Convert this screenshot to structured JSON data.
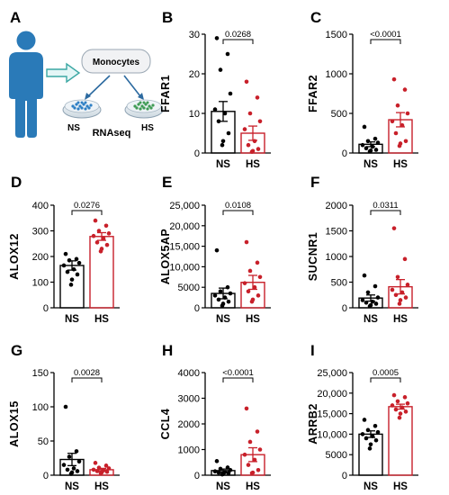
{
  "colors": {
    "ns": "#000000",
    "hs": "#c8202a",
    "person": "#2a7ab8",
    "arrow_fill": "#e4f6f6",
    "arrow_stroke": "#3aa7a3",
    "dish_ns": "#2e7fc4",
    "dish_hs": "#3f9b55"
  },
  "diagram": {
    "panel_label": "A",
    "monocytes": "Monocytes",
    "ns": "NS",
    "rnaseq": "RNAseq",
    "hs": "HS",
    "icons": [
      "person-icon",
      "block-arrow-icon",
      "petri-dish-icon"
    ]
  },
  "chart_data": [
    {
      "panel": "B",
      "type": "bar",
      "ylabel": "FFAR1",
      "categories": [
        "NS",
        "HS"
      ],
      "ylim": [
        0,
        30
      ],
      "yticks": [
        0,
        10,
        20,
        30
      ],
      "tick_labels": [
        "0",
        "10",
        "20",
        "30"
      ],
      "means": [
        10.5,
        5.0
      ],
      "sem": [
        2.5,
        1.8
      ],
      "pvalue": "0.0268",
      "points": [
        [
          29,
          25,
          21,
          15,
          11,
          10,
          8,
          5,
          3,
          2
        ],
        [
          18,
          14,
          10,
          8,
          6,
          3,
          2,
          1,
          0.5,
          0.3
        ]
      ]
    },
    {
      "panel": "C",
      "type": "bar",
      "ylabel": "FFAR2",
      "categories": [
        "NS",
        "HS"
      ],
      "ylim": [
        0,
        1500
      ],
      "yticks": [
        0,
        500,
        1000,
        1500
      ],
      "tick_labels": [
        "0",
        "500",
        "1000",
        "1500"
      ],
      "means": [
        110,
        420
      ],
      "sem": [
        30,
        90
      ],
      "pvalue": "<0.0001",
      "points": [
        [
          330,
          180,
          150,
          130,
          100,
          80,
          60,
          40,
          30,
          20
        ],
        [
          930,
          800,
          600,
          500,
          400,
          350,
          250,
          150,
          120,
          90
        ]
      ]
    },
    {
      "panel": "D",
      "type": "bar",
      "ylabel": "ALOX12",
      "categories": [
        "NS",
        "HS"
      ],
      "ylim": [
        0,
        400
      ],
      "yticks": [
        0,
        100,
        200,
        300,
        400
      ],
      "tick_labels": [
        "0",
        "100",
        "200",
        "300",
        "400"
      ],
      "means": [
        165,
        278
      ],
      "sem": [
        18,
        15
      ],
      "pvalue": "0.0276",
      "points": [
        [
          210,
          190,
          185,
          175,
          165,
          150,
          140,
          130,
          110,
          90
        ],
        [
          340,
          320,
          300,
          290,
          280,
          270,
          255,
          245,
          230,
          220
        ]
      ]
    },
    {
      "panel": "E",
      "type": "bar",
      "ylabel": "ALOX5AP",
      "categories": [
        "NS",
        "HS"
      ],
      "ylim": [
        0,
        25000
      ],
      "yticks": [
        0,
        5000,
        10000,
        15000,
        20000,
        25000
      ],
      "tick_labels": [
        "0",
        "5000",
        "10,000",
        "15,000",
        "20,000",
        "25,000"
      ],
      "means": [
        3500,
        6200
      ],
      "sem": [
        1300,
        1700
      ],
      "pvalue": "0.0108",
      "points": [
        [
          14000,
          5000,
          4000,
          3500,
          3000,
          2500,
          2000,
          1500,
          1000,
          500
        ],
        [
          16000,
          11000,
          9000,
          7500,
          6000,
          5000,
          4000,
          3000,
          2000,
          1500
        ]
      ]
    },
    {
      "panel": "F",
      "type": "bar",
      "ylabel": "SUCNR1",
      "categories": [
        "NS",
        "HS"
      ],
      "ylim": [
        0,
        2000
      ],
      "yticks": [
        0,
        500,
        1000,
        1500,
        2000
      ],
      "tick_labels": [
        "0",
        "500",
        "1000",
        "1500",
        "2000"
      ],
      "means": [
        190,
        410
      ],
      "sem": [
        60,
        140
      ],
      "pvalue": "0.0311",
      "points": [
        [
          630,
          420,
          300,
          200,
          150,
          120,
          100,
          80,
          50,
          30
        ],
        [
          1550,
          950,
          600,
          450,
          350,
          300,
          250,
          200,
          150,
          80
        ]
      ]
    },
    {
      "panel": "G",
      "type": "bar",
      "ylabel": "ALOX15",
      "categories": [
        "NS",
        "HS"
      ],
      "ylim": [
        0,
        150
      ],
      "yticks": [
        0,
        50,
        100,
        150
      ],
      "tick_labels": [
        "0",
        "50",
        "100",
        "150"
      ],
      "means": [
        23,
        8
      ],
      "sem": [
        9,
        2
      ],
      "pvalue": "0.0028",
      "points": [
        [
          100,
          35,
          27,
          20,
          15,
          10,
          8,
          6,
          4,
          2
        ],
        [
          18,
          14,
          11,
          10,
          8,
          7,
          6,
          5,
          4,
          3
        ]
      ]
    },
    {
      "panel": "H",
      "type": "bar",
      "ylabel": "CCL4",
      "categories": [
        "NS",
        "HS"
      ],
      "ylim": [
        0,
        4000
      ],
      "yticks": [
        0,
        1000,
        2000,
        3000,
        4000
      ],
      "tick_labels": [
        "0",
        "1000",
        "2000",
        "3000",
        "4000"
      ],
      "means": [
        180,
        800
      ],
      "sem": [
        60,
        270
      ],
      "pvalue": "<0.0001",
      "points": [
        [
          550,
          300,
          250,
          200,
          150,
          120,
          100,
          80,
          50,
          30
        ],
        [
          2600,
          1700,
          1300,
          1000,
          800,
          600,
          400,
          200,
          100,
          80
        ]
      ]
    },
    {
      "panel": "I",
      "type": "bar",
      "ylabel": "ARRB2",
      "categories": [
        "NS",
        "HS"
      ],
      "ylim": [
        0,
        25000
      ],
      "yticks": [
        0,
        5000,
        10000,
        15000,
        20000,
        25000
      ],
      "tick_labels": [
        "0",
        "5000",
        "10,000",
        "15,000",
        "20,000",
        "25,000"
      ],
      "means": [
        10000,
        16700
      ],
      "sem": [
        800,
        600
      ],
      "pvalue": "0.0005",
      "points": [
        [
          13500,
          12000,
          11000,
          10500,
          10000,
          9500,
          9000,
          8500,
          7500,
          6500
        ],
        [
          19500,
          19000,
          18000,
          17500,
          17000,
          16500,
          16000,
          15500,
          15000,
          14000
        ]
      ]
    }
  ]
}
